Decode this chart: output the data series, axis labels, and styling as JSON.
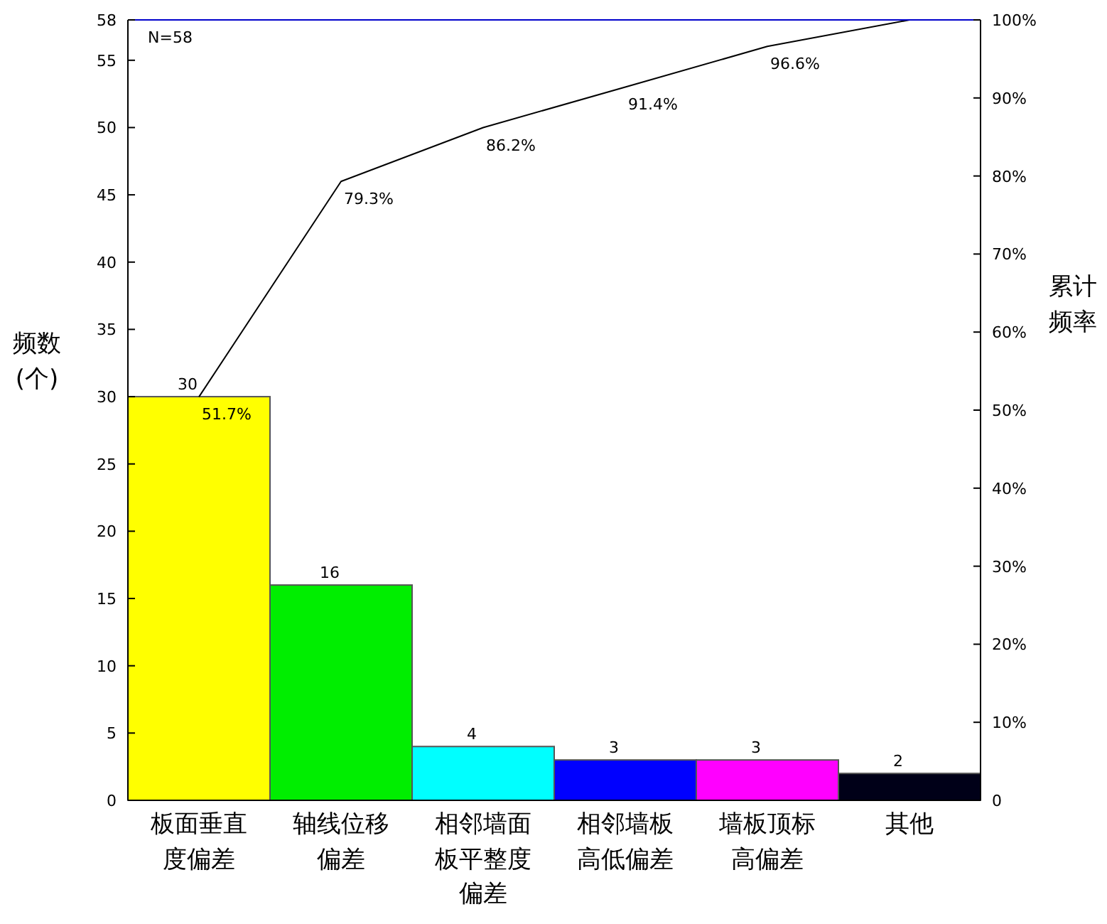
{
  "chart_data": {
    "type": "bar",
    "categories": [
      "板面垂直度偏差",
      "轴线位移偏差",
      "相邻墙面板平整度偏差",
      "相邻墙板高低偏差",
      "墙板顶标高偏差",
      "其他"
    ],
    "ylabel": "频数(个)",
    "y2label": "累计频率",
    "ylim": [
      0,
      58
    ],
    "yticks": [
      0,
      5,
      10,
      15,
      20,
      25,
      30,
      35,
      40,
      45,
      50,
      55,
      58
    ],
    "y2lim": [
      0,
      100
    ],
    "y2ticks": [
      0,
      {
        "value": 10,
        "label": "10%"
      },
      {
        "value": 20,
        "label": "20%"
      },
      {
        "value": 30,
        "label": "30%"
      },
      {
        "value": 40,
        "label": "40%"
      },
      {
        "value": 50,
        "label": "50%"
      },
      {
        "value": 60,
        "label": "60%"
      },
      {
        "value": 70,
        "label": "70%"
      },
      {
        "value": 80,
        "label": "80%"
      },
      {
        "value": 90,
        "label": "90%"
      },
      {
        "value": 100,
        "label": "100%"
      }
    ],
    "series": [
      {
        "values": [
          30,
          16,
          4,
          3,
          3,
          2
        ],
        "colors": [
          "#ffff00",
          "#00ee00",
          "#00ffff",
          "#0000ff",
          "#ff00ff",
          "#000018"
        ],
        "data_labels": true
      },
      {
        "type": "line",
        "axis": "y2",
        "color": "#000000",
        "values": [
          51.7,
          79.3,
          86.2,
          91.4,
          96.6,
          100
        ],
        "value_labels": [
          "51.7%",
          "79.3%",
          "86.2%",
          "91.4%",
          "96.6%",
          null
        ]
      }
    ],
    "annotations": [
      "N=58"
    ],
    "grid": false
  }
}
